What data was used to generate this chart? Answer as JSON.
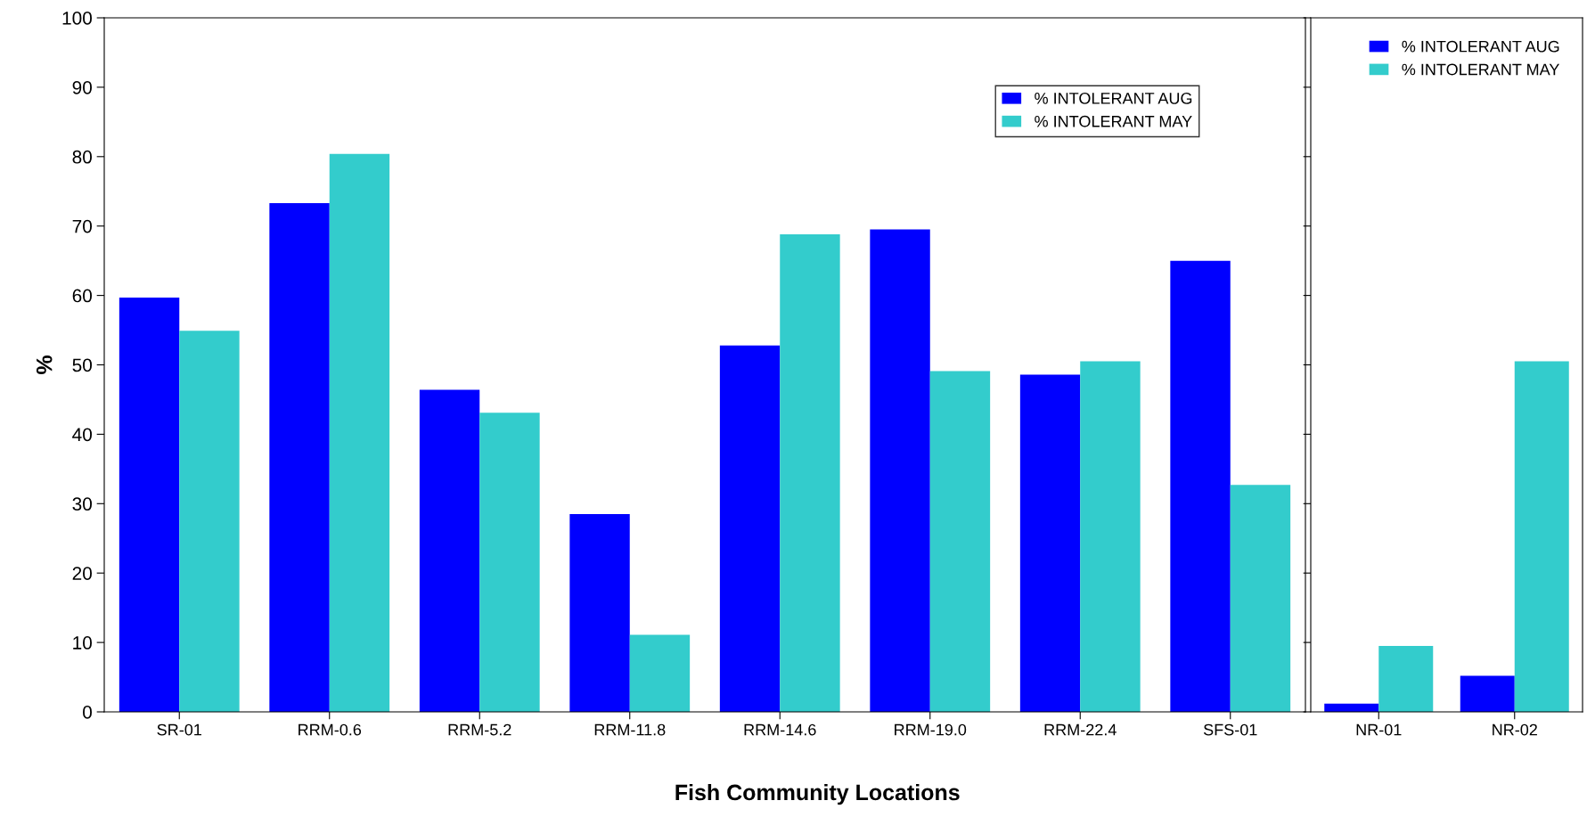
{
  "chart_data": [
    {
      "type": "bar",
      "ylabel": "%",
      "xlabel": "Fish Community Locations",
      "categories": [
        "SR-01",
        "RRM-0.6",
        "RRM-5.2",
        "RRM-11.8",
        "RRM-14.6",
        "RRM-19.0",
        "RRM-22.4",
        "SFS-01"
      ],
      "series": [
        {
          "name": "% INTOLERANT AUG",
          "color": "#0000ff",
          "values": [
            59.7,
            73.3,
            46.4,
            28.5,
            52.8,
            69.5,
            48.6,
            65.0
          ]
        },
        {
          "name": "% INTOLERANT MAY",
          "color": "#33cccc",
          "values": [
            54.9,
            80.4,
            43.1,
            11.1,
            68.8,
            49.1,
            50.5,
            32.7
          ]
        }
      ],
      "ylim": [
        0,
        100
      ],
      "yticks": [
        0,
        10,
        20,
        30,
        40,
        50,
        60,
        70,
        80,
        90,
        100
      ],
      "legend": "top right",
      "grid": false
    },
    {
      "type": "bar",
      "categories": [
        "NR-01",
        "NR-02"
      ],
      "series": [
        {
          "name": "% INTOLERANT AUG",
          "color": "#0000ff",
          "values": [
            1.2,
            5.2
          ]
        },
        {
          "name": "% INTOLERANT MAY",
          "color": "#33cccc",
          "values": [
            9.5,
            50.5
          ]
        }
      ],
      "ylim": [
        0,
        100
      ],
      "yticks": [
        0,
        10,
        20,
        30,
        40,
        50,
        60,
        70,
        80,
        90,
        100
      ],
      "tick_labels": "x",
      "legend": "top right",
      "grid": false
    }
  ]
}
